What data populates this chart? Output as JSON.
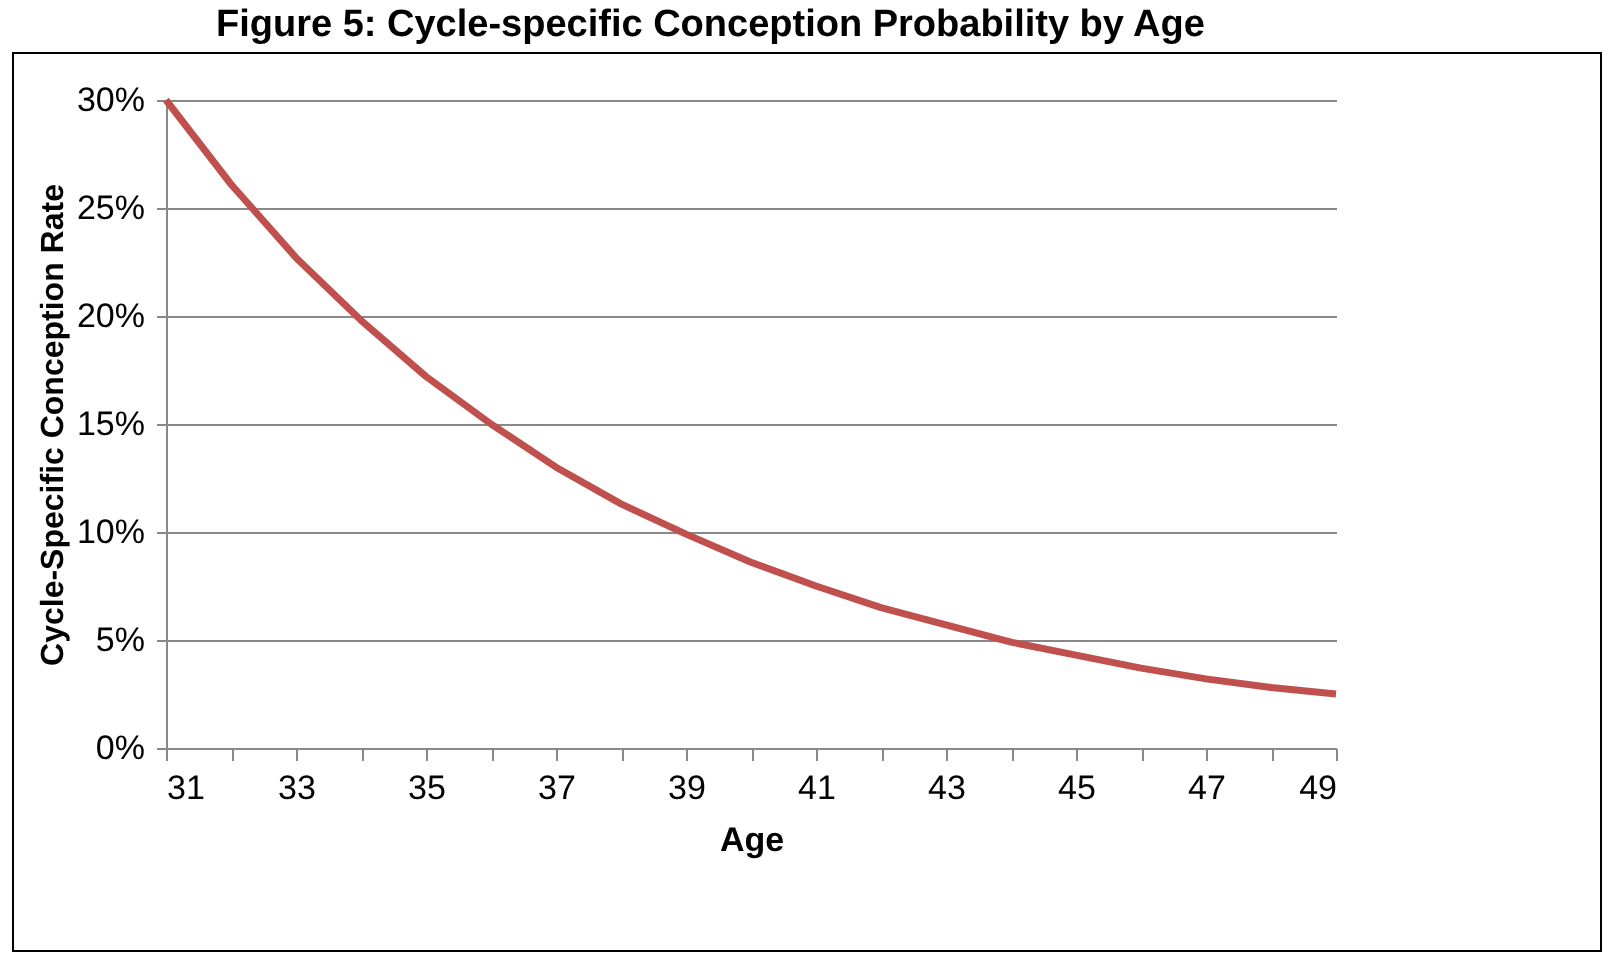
{
  "chart_data": {
    "type": "line",
    "title": "Figure 5: Cycle-specific Conception Probability by Age",
    "xlabel": "Age",
    "ylabel": "Cycle-Specific Conception Rate",
    "x": [
      31,
      32,
      33,
      34,
      35,
      36,
      37,
      38,
      39,
      40,
      41,
      42,
      43,
      44,
      45,
      46,
      47,
      48,
      49
    ],
    "series": [
      {
        "color": "#c0504d",
        "values": [
          30,
          26.1,
          22.7,
          19.8,
          17.2,
          15.0,
          13.0,
          11.3,
          9.9,
          8.6,
          7.5,
          6.5,
          5.7,
          4.9,
          4.3,
          3.7,
          3.2,
          2.8,
          2.5
        ]
      }
    ],
    "xlim": [
      31,
      49
    ],
    "xticks": [
      31,
      {
        "value": 32,
        "label": null
      },
      33,
      {
        "value": 34,
        "label": null
      },
      35,
      {
        "value": 36,
        "label": null
      },
      37,
      {
        "value": 38,
        "label": null
      },
      39,
      {
        "value": 40,
        "label": null
      },
      41,
      {
        "value": 42,
        "label": null
      },
      43,
      {
        "value": 44,
        "label": null
      },
      45,
      {
        "value": 46,
        "label": null
      },
      47,
      {
        "value": 48,
        "label": null
      },
      49
    ],
    "ylim": [
      0,
      30
    ],
    "yticks": [
      {
        "value": 0,
        "label": "0%"
      },
      {
        "value": 5,
        "label": "5%"
      },
      {
        "value": 10,
        "label": "10%"
      },
      {
        "value": 15,
        "label": "15%"
      },
      {
        "value": 20,
        "label": "20%"
      },
      {
        "value": 25,
        "label": "25%"
      },
      {
        "value": 30,
        "label": "30%"
      }
    ],
    "grid": "y",
    "line_style": "solid",
    "marker": "none"
  }
}
